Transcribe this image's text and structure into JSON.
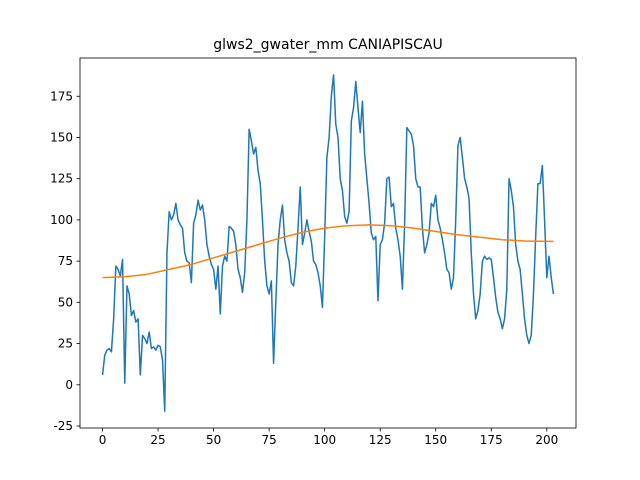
{
  "chart_data": {
    "type": "line",
    "title": "glws2_gwater_mm CANIAPISCAU",
    "series": [
      {
        "color": "#1f77b4",
        "x": [
          0,
          1,
          2,
          3,
          4,
          5,
          6,
          7,
          8,
          9,
          10,
          11,
          12,
          13,
          14,
          15,
          16,
          17,
          18,
          19,
          20,
          21,
          22,
          23,
          24,
          25,
          26,
          27,
          28,
          29,
          30,
          31,
          32,
          33,
          34,
          35,
          36,
          37,
          38,
          39,
          40,
          41,
          42,
          43,
          44,
          45,
          46,
          47,
          48,
          49,
          50,
          51,
          52,
          53,
          54,
          55,
          56,
          57,
          58,
          59,
          60,
          61,
          62,
          63,
          64,
          65,
          66,
          67,
          68,
          69,
          70,
          71,
          72,
          73,
          74,
          75,
          76,
          77,
          78,
          79,
          80,
          81,
          82,
          83,
          84,
          85,
          86,
          87,
          88,
          89,
          90,
          91,
          92,
          93,
          94,
          95,
          96,
          97,
          98,
          99,
          100,
          101,
          102,
          103,
          104,
          105,
          106,
          107,
          108,
          109,
          110,
          111,
          112,
          113,
          114,
          115,
          116,
          117,
          118,
          119,
          120,
          121,
          122,
          123,
          124,
          125,
          126,
          127,
          128,
          129,
          130,
          131,
          132,
          133,
          134,
          135,
          136,
          137,
          138,
          139,
          140,
          141,
          142,
          143,
          144,
          145,
          146,
          147,
          148,
          149,
          150,
          151,
          152,
          153,
          154,
          155,
          156,
          157,
          158,
          159,
          160,
          161,
          162,
          163,
          164,
          165,
          166,
          167,
          168,
          169,
          170,
          171,
          172,
          173,
          174,
          175,
          176,
          177,
          178,
          179,
          180,
          181,
          182,
          183,
          184,
          185,
          186,
          187,
          188,
          189,
          190,
          191,
          192,
          193,
          194,
          195,
          196,
          197,
          198,
          199,
          200,
          201,
          202,
          203
        ],
        "values": [
          6,
          18,
          21,
          22,
          20,
          40,
          72,
          70,
          66,
          76,
          1,
          60,
          55,
          42,
          45,
          38,
          40,
          6,
          30,
          28,
          25,
          32,
          22,
          23,
          21,
          24,
          23,
          15,
          -16,
          80,
          105,
          100,
          103,
          110,
          100,
          97,
          95,
          80,
          75,
          74,
          62,
          98,
          103,
          112,
          106,
          109,
          100,
          85,
          78,
          73,
          70,
          58,
          72,
          43,
          72,
          78,
          75,
          96,
          95,
          93,
          85,
          70,
          65,
          56,
          68,
          100,
          155,
          148,
          140,
          144,
          130,
          122,
          100,
          75,
          60,
          55,
          63,
          13,
          50,
          85,
          100,
          109,
          88,
          80,
          75,
          62,
          60,
          72,
          95,
          120,
          85,
          92,
          100,
          93,
          87,
          75,
          73,
          68,
          60,
          47,
          90,
          138,
          150,
          175,
          188,
          158,
          150,
          125,
          118,
          102,
          98,
          105,
          160,
          168,
          184,
          168,
          153,
          172,
          140,
          125,
          110,
          92,
          88,
          90,
          51,
          85,
          88,
          98,
          125,
          126,
          108,
          110,
          95,
          88,
          78,
          58,
          98,
          156,
          154,
          152,
          145,
          125,
          120,
          120,
          95,
          80,
          85,
          92,
          110,
          108,
          115,
          100,
          95,
          88,
          80,
          70,
          68,
          58,
          65,
          100,
          145,
          150,
          138,
          125,
          120,
          113,
          80,
          55,
          40,
          45,
          55,
          75,
          78,
          76,
          77,
          76,
          65,
          53,
          44,
          40,
          34,
          40,
          58,
          125,
          118,
          108,
          85,
          75,
          70,
          55,
          40,
          30,
          25,
          30,
          55,
          90,
          122,
          122,
          133,
          100,
          65,
          78,
          65,
          55
        ]
      },
      {
        "color": "#ff7f0e",
        "x": [
          0,
          10,
          20,
          30,
          40,
          50,
          60,
          70,
          80,
          90,
          100,
          110,
          120,
          130,
          140,
          150,
          160,
          170,
          180,
          190,
          200,
          203
        ],
        "values": [
          65,
          65.5,
          67,
          70,
          73,
          77,
          81,
          85,
          89,
          92.5,
          95,
          96.5,
          97,
          96.5,
          95,
          93,
          91,
          89.5,
          88,
          87.2,
          87,
          87
        ]
      }
    ],
    "xlim": [
      -10.15,
      213.15
    ],
    "xticks": [
      0,
      25,
      50,
      75,
      100,
      125,
      150,
      175,
      200
    ],
    "ylim": [
      -26.2,
      198.2
    ],
    "yticks": [
      -25,
      0,
      25,
      50,
      75,
      100,
      125,
      150,
      175
    ]
  }
}
